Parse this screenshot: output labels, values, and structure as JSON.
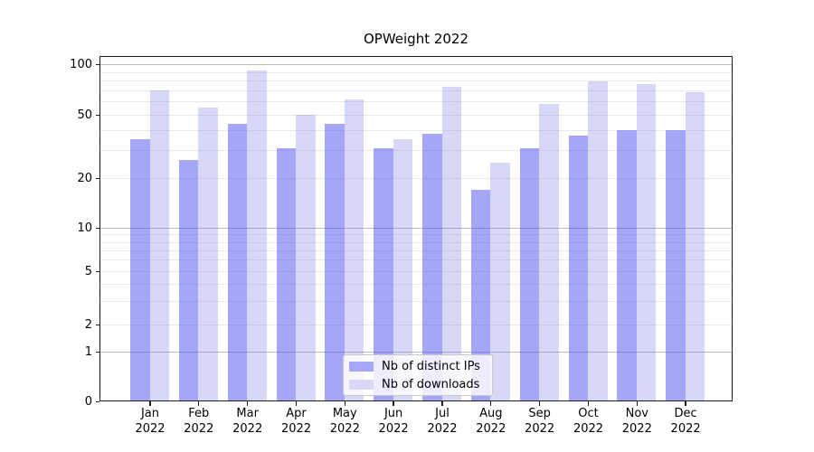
{
  "title": "OPWeight 2022",
  "chart_data": {
    "type": "bar",
    "title": "OPWeight 2022",
    "categories": [
      {
        "month": "Jan",
        "year": "2022"
      },
      {
        "month": "Feb",
        "year": "2022"
      },
      {
        "month": "Mar",
        "year": "2022"
      },
      {
        "month": "Apr",
        "year": "2022"
      },
      {
        "month": "May",
        "year": "2022"
      },
      {
        "month": "Jun",
        "year": "2022"
      },
      {
        "month": "Jul",
        "year": "2022"
      },
      {
        "month": "Aug",
        "year": "2022"
      },
      {
        "month": "Sep",
        "year": "2022"
      },
      {
        "month": "Oct",
        "year": "2022"
      },
      {
        "month": "Nov",
        "year": "2022"
      },
      {
        "month": "Dec",
        "year": "2022"
      }
    ],
    "series": [
      {
        "name": "Nb of distinct IPs",
        "color": "#a8a8f8",
        "fill": "rgba(85,85,240,0.52)",
        "values": [
          35,
          26,
          44,
          31,
          44,
          31,
          38,
          17,
          31,
          37,
          40,
          40
        ]
      },
      {
        "name": "Nb of downloads",
        "color": "#d8d8f6",
        "fill": "rgba(95,95,220,0.25)",
        "values": [
          70,
          55,
          92,
          50,
          62,
          35,
          73,
          25,
          58,
          79,
          76,
          68
        ]
      }
    ],
    "y_axis": {
      "scale": "symlog",
      "ticks": [
        0,
        1,
        2,
        5,
        10,
        20,
        50,
        100
      ],
      "major_gridlines": [
        1,
        10,
        100
      ],
      "minor_gridlines": [
        2,
        3,
        4,
        5,
        6,
        7,
        8,
        9,
        20,
        30,
        40,
        50,
        60,
        70,
        80,
        90
      ],
      "range": [
        0,
        104
      ]
    },
    "x_axis": {
      "year_line": "2022"
    },
    "legend_position": "lower center",
    "grid": "both"
  },
  "style": {
    "background": "#ffffff",
    "spine": "#1c1c1c",
    "grid_major": "#bcbcbc",
    "grid_minor": "#eaeaea",
    "text": "#000000",
    "legend_border": "#c9c9c9"
  }
}
